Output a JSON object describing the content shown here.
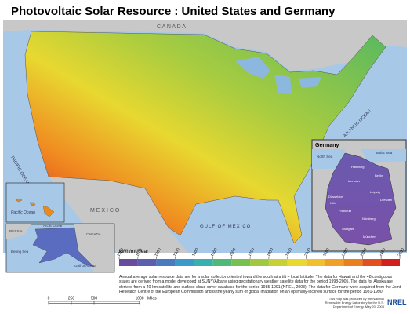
{
  "title": "Photovoltaic Solar Resource : United States and Germany",
  "labels": {
    "canada": "C A N A D A",
    "mexico": "M E X I C O",
    "gulf": "GULF OF MEXICO",
    "atlantic": "ATLANTIC OCEAN",
    "pacific": "PACIFIC OCEAN",
    "pacific_hawaii": "Pacific Ocean",
    "arctic": "Arctic Ocean",
    "russia": "RUSSIA",
    "canada_ak": "CANADA",
    "bering": "Bering Sea",
    "gulf_alaska": "Gulf of Alaska"
  },
  "germany": {
    "title": "Germany",
    "north_sea": "North Sea",
    "baltic": "Baltic Sea",
    "cities": [
      "Hamburg",
      "Berlin",
      "Hannover",
      "Düsseldorf",
      "Köln",
      "Leipzig",
      "Dresden",
      "Frankfurt",
      "Nürnberg",
      "Stuttgart",
      "München"
    ]
  },
  "legend": {
    "unit": "kWh/m²/Year",
    "ticks": [
      1000,
      1100,
      1200,
      1300,
      1400,
      1500,
      1600,
      1700,
      1800,
      1900,
      2000,
      2100,
      2200,
      2300,
      2400,
      2500
    ],
    "colors": [
      "#6a4c9c",
      "#5a5fb0",
      "#4a7ac0",
      "#3a9ac8",
      "#38b0b0",
      "#50b878",
      "#78c050",
      "#a0c840",
      "#c8d038",
      "#e8d830",
      "#f0c030",
      "#f0a028",
      "#e88020",
      "#e05020",
      "#d02020"
    ]
  },
  "scale": {
    "ticks": [
      0,
      250,
      500,
      1000
    ],
    "unit": "Miles"
  },
  "description": "Annual average solar resource data are for a solar collector oriented toward the south at a tilt = local latitude. The data for Hawaii and the 48 contiguous states are derived from a model developed at SUNY/Albany using geostationary weather satellite data for the period 1998-2005. The data for Alaska are derived from a 40-km satellite and surface cloud cover database for the period 1985-1991 (NREL, 2003). The data for Germany were acquired from the Joint Research Centre of the European Commission and is the yearly sum of global irradiation on an optimally-inclined surface for the period 1981-1990.",
  "credit": "This map was produced by the National Renewable Energy Laboratory for the U.S. Department of Energy. May 20, 2008",
  "logo": "NREL"
}
